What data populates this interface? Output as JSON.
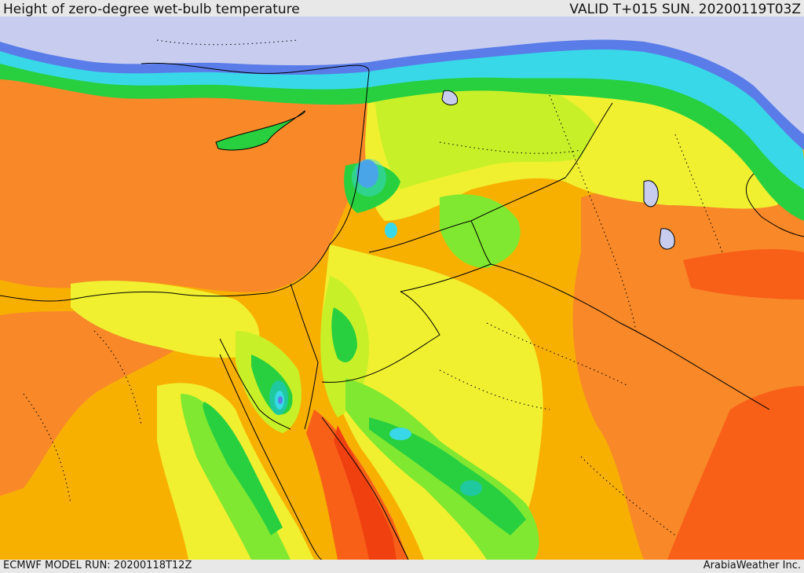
{
  "header": {
    "title": "Height of zero-degree wet-bulb temperature",
    "valid": "VALID T+015 SUN. 20200119T03Z"
  },
  "footer": {
    "model_run": "ECMWF MODEL RUN: 20200118T12Z",
    "credit": "ArabiaWeather Inc."
  },
  "colors": {
    "cold_sky": "#c8cdf0",
    "deep_blue": "#3c3cdc",
    "mid_blue": "#5a7ce8",
    "cyan": "#38d8e8",
    "teal": "#20c8a0",
    "green": "#28d040",
    "light_green": "#80e830",
    "yellow_green": "#c8f028",
    "yellow": "#f0f030",
    "light_orange": "#f8c830",
    "orange": "#f8b000",
    "dark_orange": "#f88828",
    "red_orange": "#f86018",
    "red": "#f04010"
  }
}
